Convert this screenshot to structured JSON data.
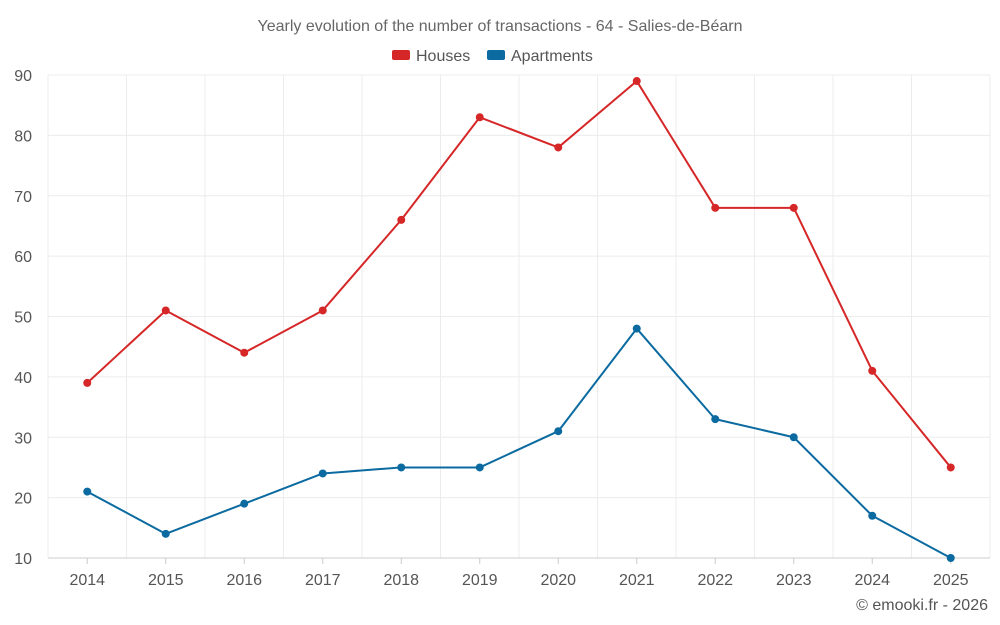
{
  "chart_data": {
    "type": "line",
    "title": "Yearly evolution of the number of transactions - 64 - Salies-de-Béarn",
    "categories": [
      "2014",
      "2015",
      "2016",
      "2017",
      "2018",
      "2019",
      "2020",
      "2021",
      "2022",
      "2023",
      "2024",
      "2025"
    ],
    "series": [
      {
        "name": "Houses",
        "color": "#d62728",
        "values": [
          39,
          51,
          44,
          51,
          66,
          83,
          78,
          89,
          68,
          68,
          41,
          25
        ]
      },
      {
        "name": "Apartments",
        "color": "#0b6aa0",
        "values": [
          21,
          14,
          19,
          24,
          25,
          25,
          31,
          48,
          33,
          30,
          17,
          10
        ]
      }
    ],
    "ylim": [
      10,
      90
    ],
    "yticks": [
      10,
      20,
      30,
      40,
      50,
      60,
      70,
      80,
      90
    ],
    "xlabel": "",
    "ylabel": "",
    "grid": true,
    "legend": "top-center"
  },
  "credit": "© emooki.fr - 2026"
}
